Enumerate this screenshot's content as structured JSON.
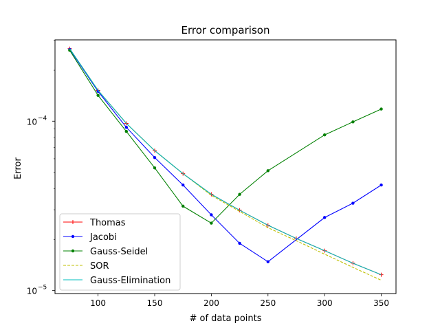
{
  "chart_data": {
    "type": "line",
    "title": "Error comparison",
    "xlabel": "# of data points",
    "ylabel": "Error",
    "xlim": [
      62,
      363
    ],
    "ylim_log": [
      9.6e-06,
      0.000302
    ],
    "yscale": "log",
    "grid": false,
    "legend_position": "lower-left",
    "x_ticks": [
      100,
      150,
      200,
      250,
      300,
      350
    ],
    "y_major_ticks": [
      {
        "value": 1e-05,
        "base": "10",
        "exp": "−5"
      },
      {
        "value": 0.0001,
        "base": "10",
        "exp": "−4"
      }
    ],
    "y_minor_ticks": [
      2e-05,
      3e-05,
      4e-05,
      5e-05,
      6e-05,
      7e-05,
      8e-05,
      9e-05,
      0.0002,
      0.0003
    ],
    "x": [
      75,
      100,
      125,
      150,
      175,
      200,
      225,
      250,
      275,
      300,
      325,
      350
    ],
    "series": [
      {
        "name": "Thomas",
        "color": "#ff0000",
        "line_style": "solid",
        "marker": "plus",
        "values": [
          0.000268,
          0.000152,
          9.7e-05,
          6.7e-05,
          4.9e-05,
          3.7e-05,
          2.98e-05,
          2.43e-05,
          2.03e-05,
          1.72e-05,
          1.45e-05,
          1.24e-05
        ]
      },
      {
        "name": "Jacobi",
        "color": "#0000ff",
        "line_style": "solid",
        "marker": "dot",
        "values": [
          0.000265,
          0.00015,
          9.2e-05,
          6.1e-05,
          4.2e-05,
          2.8e-05,
          1.9e-05,
          1.48e-05,
          null,
          2.7e-05,
          3.28e-05,
          4.2e-05
        ]
      },
      {
        "name": "Gauss-Seidel",
        "color": "#008000",
        "line_style": "solid",
        "marker": "dot",
        "values": [
          0.000262,
          0.000142,
          8.7e-05,
          5.3e-05,
          3.15e-05,
          2.5e-05,
          3.7e-05,
          5.1e-05,
          null,
          8.3e-05,
          9.9e-05,
          0.000118
        ]
      },
      {
        "name": "SOR",
        "color": "#bfbf00",
        "line_style": "dashed",
        "marker": "none",
        "values": [
          0.000268,
          0.000152,
          9.7e-05,
          6.7e-05,
          4.9e-05,
          3.65e-05,
          2.93e-05,
          2.35e-05,
          1.97e-05,
          1.64e-05,
          1.37e-05,
          1.15e-05
        ]
      },
      {
        "name": "Gauss-Elimination",
        "color": "#00bfbf",
        "line_style": "solid",
        "marker": "none",
        "values": [
          0.000268,
          0.000152,
          9.7e-05,
          6.7e-05,
          4.9e-05,
          3.7e-05,
          2.98e-05,
          2.43e-05,
          2.03e-05,
          1.72e-05,
          1.45e-05,
          1.24e-05
        ]
      }
    ]
  }
}
